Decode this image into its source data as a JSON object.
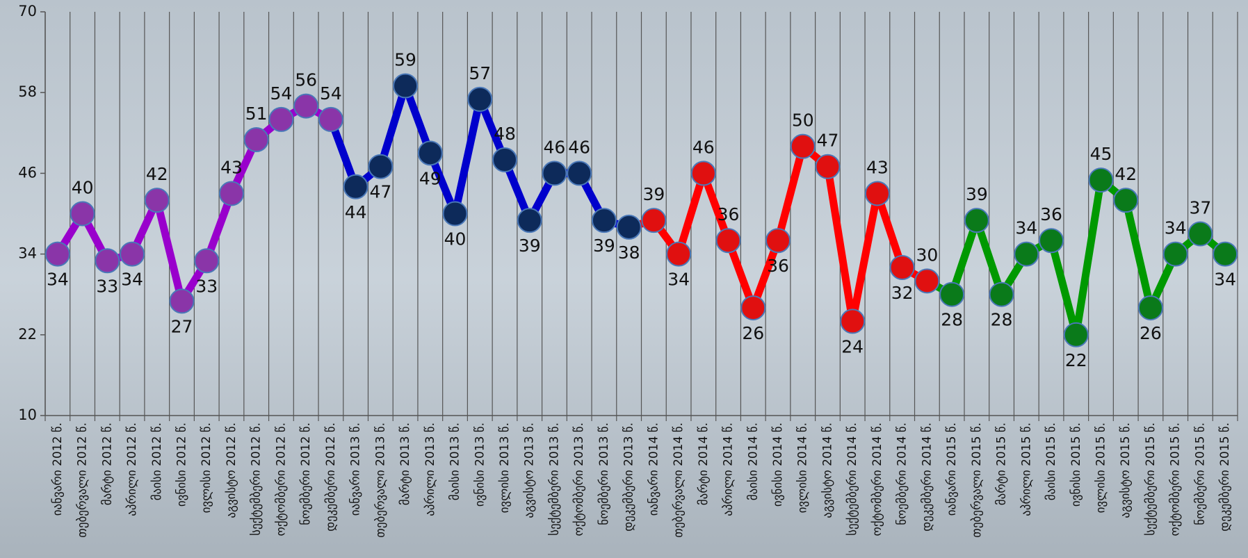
{
  "chart_data": {
    "type": "line",
    "categories": [
      "იანვარი 2012 წ.",
      "თებერვალი 2012 წ.",
      "მარტი 2012 წ.",
      "აპრილი 2012 წ.",
      "მაისი 2012 წ.",
      "ივნისი 2012 წ.",
      "ივლისი 2012 წ.",
      "აგვისტო 2012 წ.",
      "სექტემბერი 2012 წ.",
      "ოქტომბერი 2012 წ.",
      "ნოემბერი 2012 წ.",
      "დეკემბერი 2012 წ.",
      "იანვარი 2013 წ.",
      "თებერვალი 2013 წ.",
      "მარტი 2013 წ.",
      "აპრილი 2013 წ.",
      "მაისი 2013 წ.",
      "ივნისი 2013 წ.",
      "ივლისი 2013 წ.",
      "აგვისტო 2013 წ.",
      "სექტემბერი 2013 წ.",
      "ოქტომბერი 2013 წ.",
      "ნოემბერი 2013 წ.",
      "დეკემბერი 2013 წ.",
      "იანვარი 2014 წ.",
      "თებერვალი 2014 წ.",
      "მარტი 2014 წ.",
      "აპრილი 2014 წ.",
      "მაისი 2014 წ.",
      "ივნისი 2014 წ.",
      "ივლისი 2014 წ.",
      "აგვისტო 2014 წ.",
      "სექტემბერი 2014 წ.",
      "ოქტომბერი 2014 წ.",
      "ნოემბერი 2014 წ.",
      "დეკემბერი 2014 წ.",
      "იანვარი 2015 წ.",
      "თებერვალი 2015 წ.",
      "მარტი 2015 წ.",
      "აპრილი 2015 წ.",
      "მაისი 2015 წ.",
      "ივნისი 2015 წ.",
      "ივლისი 2015 წ.",
      "აგვისტო 2015 წ.",
      "სექტემბერი 2015 წ.",
      "ოქტომბერი 2015 წ.",
      "ნოემბერი 2015 წ.",
      "დეკემბერი 2015 წ."
    ],
    "series": [
      {
        "color": "#9900cc",
        "marker_color": "#8a35a8",
        "values": [
          34,
          40,
          33,
          34,
          42,
          27,
          33,
          43,
          51,
          54,
          56,
          54,
          null,
          null,
          null,
          null,
          null,
          null,
          null,
          null,
          null,
          null,
          null,
          null,
          null,
          null,
          null,
          null,
          null,
          null,
          null,
          null,
          null,
          null,
          null,
          null,
          null,
          null,
          null,
          null,
          null,
          null,
          null,
          null,
          null,
          null,
          null,
          null
        ]
      },
      {
        "color": "#0000cc",
        "marker_color": "#0d2a5a",
        "values": [
          null,
          null,
          null,
          null,
          null,
          null,
          null,
          null,
          null,
          null,
          null,
          null,
          44,
          47,
          59,
          49,
          40,
          57,
          48,
          39,
          46,
          46,
          39,
          38,
          null,
          null,
          null,
          null,
          null,
          null,
          null,
          null,
          null,
          null,
          null,
          null,
          null,
          null,
          null,
          null,
          null,
          null,
          null,
          null,
          null,
          null,
          null,
          null
        ]
      },
      {
        "color": "#ff0000",
        "marker_color": "#e01010",
        "values": [
          null,
          null,
          null,
          null,
          null,
          null,
          null,
          null,
          null,
          null,
          null,
          null,
          null,
          null,
          null,
          null,
          null,
          null,
          null,
          null,
          null,
          null,
          null,
          null,
          39,
          34,
          46,
          36,
          26,
          36,
          50,
          47,
          24,
          43,
          32,
          30,
          null,
          null,
          null,
          null,
          null,
          null,
          null,
          null,
          null,
          null,
          null,
          null
        ]
      },
      {
        "color": "#009900",
        "marker_color": "#0a7a1a",
        "values": [
          null,
          null,
          null,
          null,
          null,
          null,
          null,
          null,
          null,
          null,
          null,
          null,
          null,
          null,
          null,
          null,
          null,
          null,
          null,
          null,
          null,
          null,
          null,
          null,
          null,
          null,
          null,
          null,
          null,
          null,
          null,
          null,
          null,
          null,
          null,
          null,
          28,
          39,
          28,
          34,
          36,
          22,
          45,
          42,
          26,
          34,
          37,
          34
        ]
      }
    ],
    "ylim": [
      10,
      70
    ],
    "yticks": [
      10,
      22,
      34,
      46,
      58,
      70
    ],
    "grid": true
  }
}
